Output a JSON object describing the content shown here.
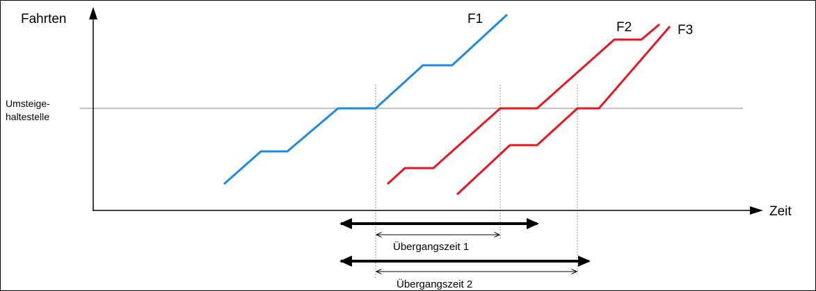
{
  "labels": {
    "y_axis": "Fahrten",
    "x_axis": "Zeit",
    "transfer_stop": [
      "Umsteige-",
      "haltestelle"
    ],
    "series": {
      "f1": "F1",
      "f2": "F2",
      "f3": "F3"
    },
    "transfer_time_1": "Übergangszeit 1",
    "transfer_time_2": "Übergangszeit 2"
  },
  "colors": {
    "f1": "#1E88E5",
    "f2": "#E8141E",
    "f3": "#E8141E",
    "transfer_line": "#9E9E9E",
    "axes": "#000000"
  }
}
